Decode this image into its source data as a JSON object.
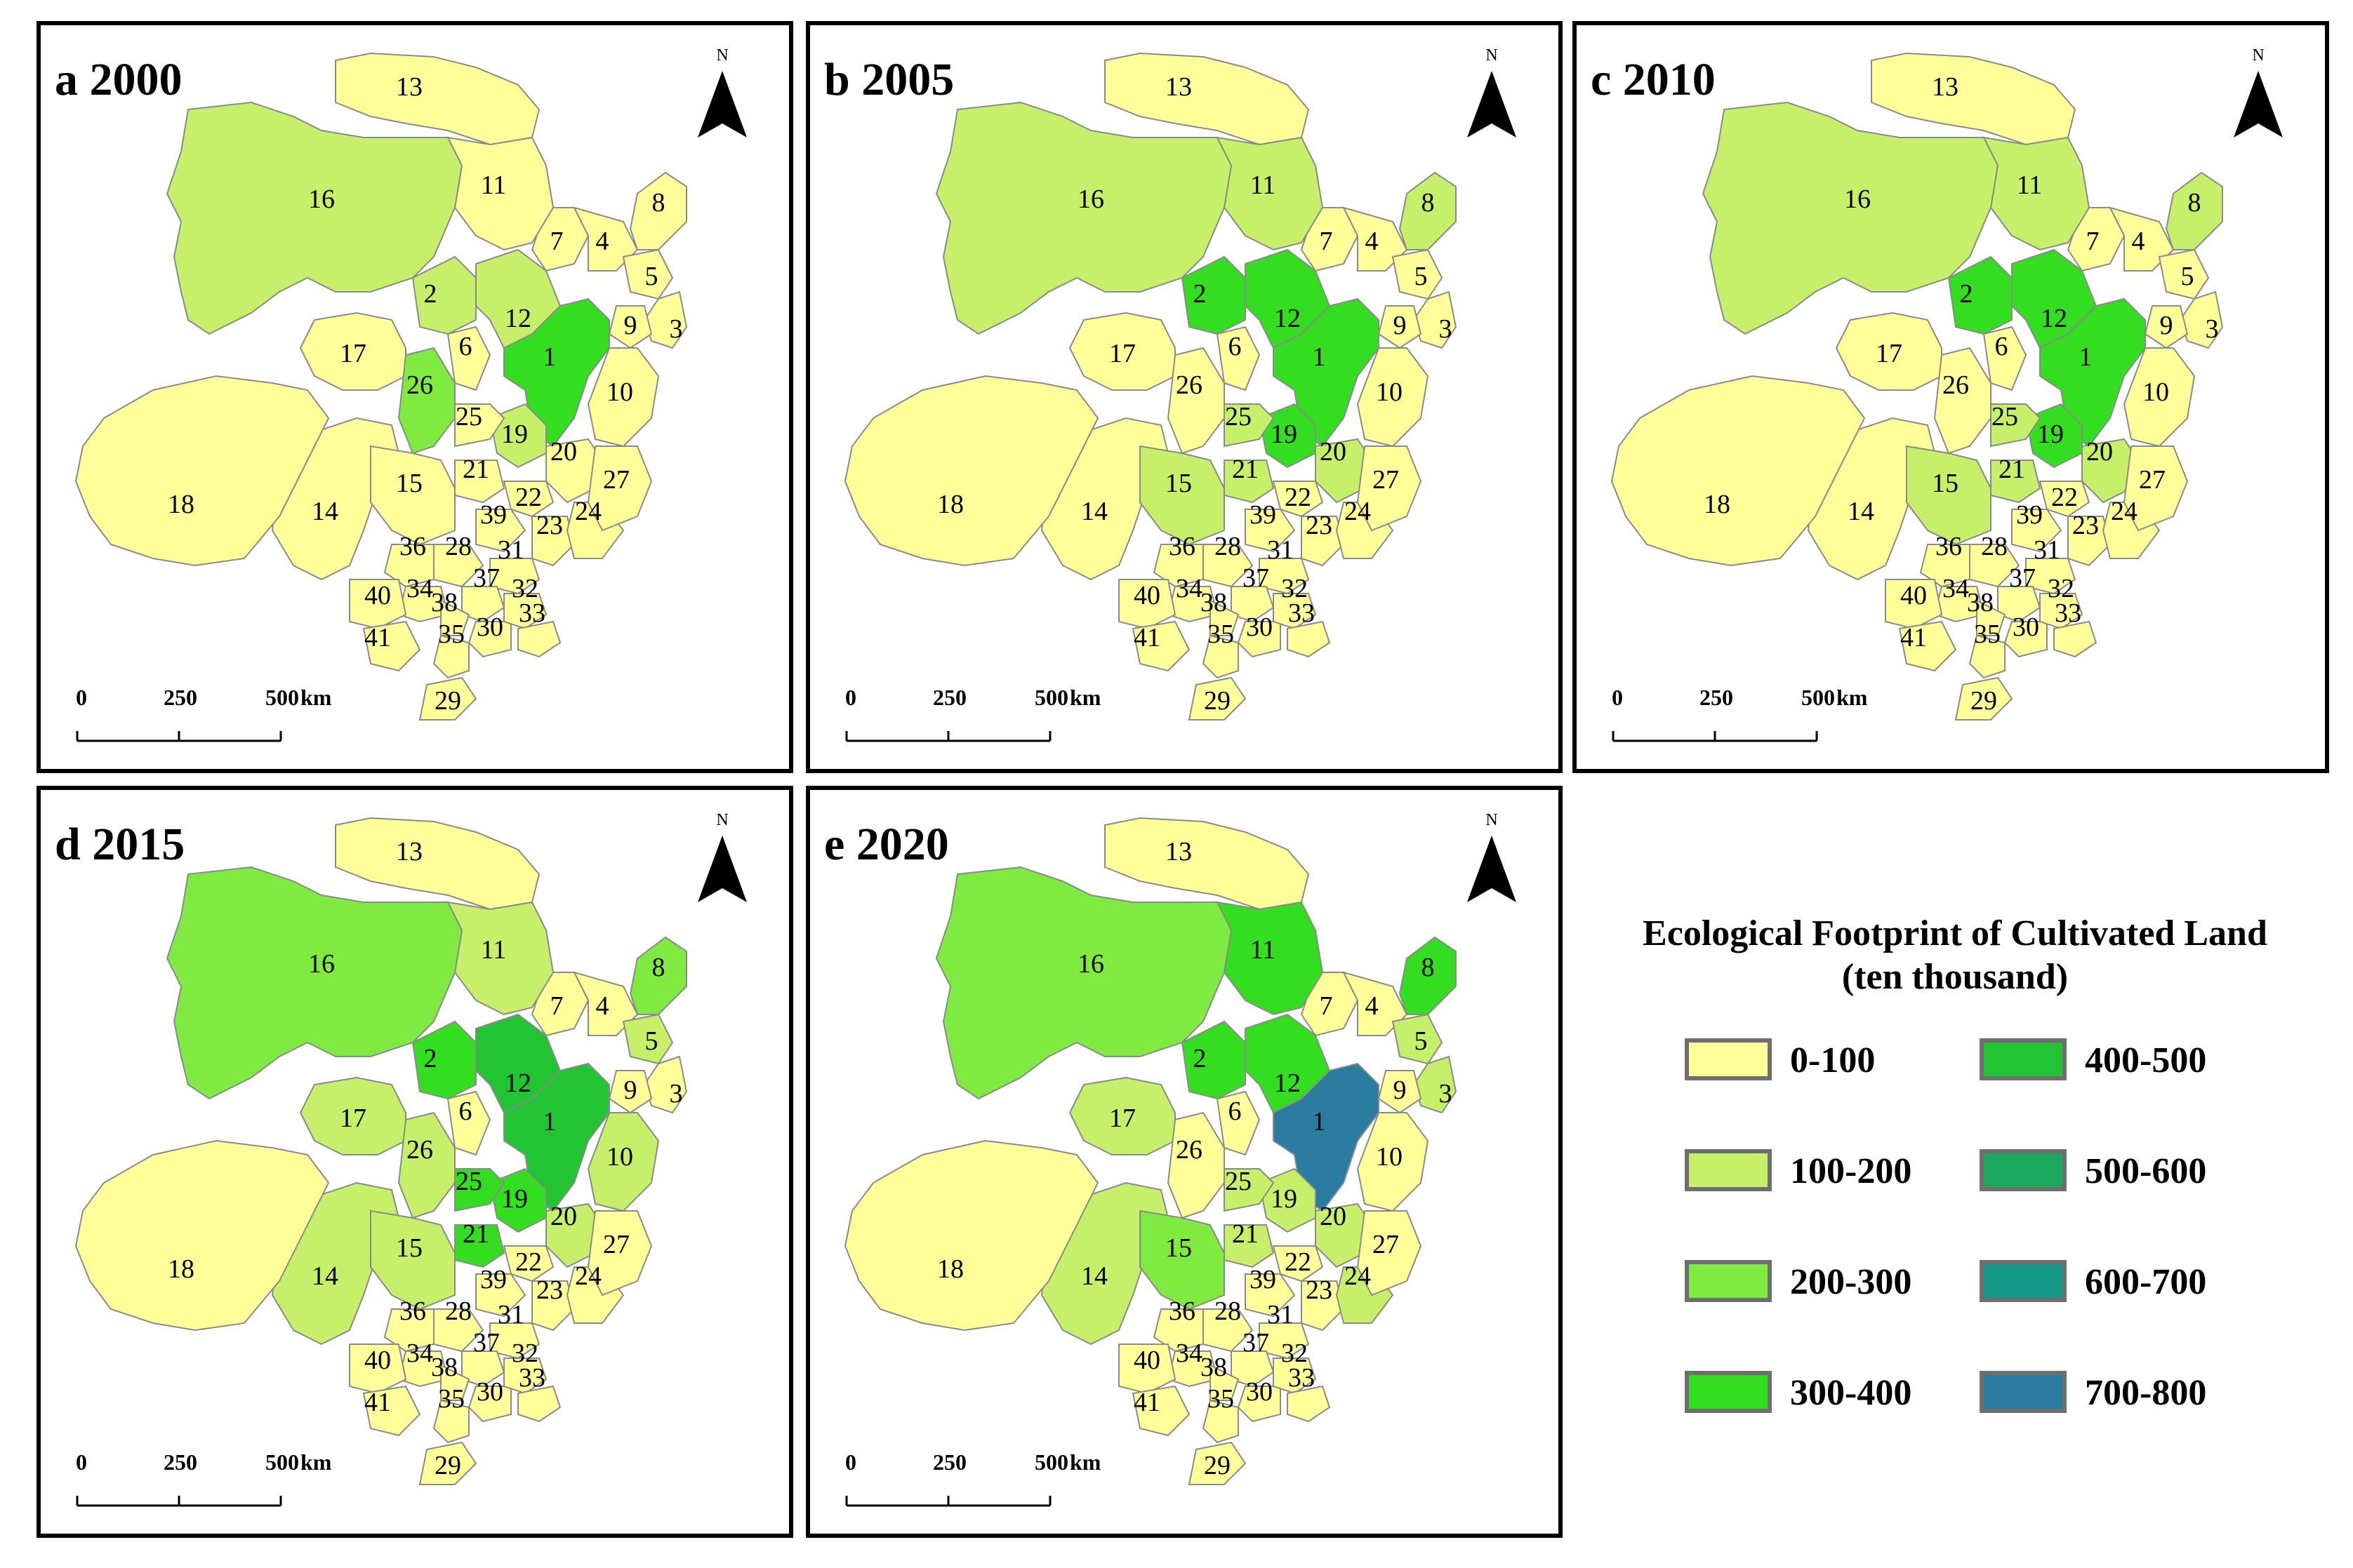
{
  "legend": {
    "title_line1": "Ecological Footprint of Cultivated Land",
    "title_line2": "(ten thousand)",
    "classes": [
      {
        "label": "0-100",
        "color": "#FFFF99"
      },
      {
        "label": "100-200",
        "color": "#C6EF6A"
      },
      {
        "label": "200-300",
        "color": "#7FEA3F"
      },
      {
        "label": "300-400",
        "color": "#33DD1F"
      },
      {
        "label": "400-500",
        "color": "#22C433"
      },
      {
        "label": "500-600",
        "color": "#1AA85E"
      },
      {
        "label": "600-700",
        "color": "#159989"
      },
      {
        "label": "700-800",
        "color": "#2A7DA0"
      }
    ]
  },
  "north_label": "N",
  "scale": {
    "ticks": [
      "0",
      "250",
      "500"
    ],
    "unit": "km"
  },
  "panels": [
    {
      "title": "a 2000",
      "classes": {
        "1": 3,
        "2": 1,
        "8": 0,
        "11": 0,
        "12": 1,
        "15": 0,
        "16": 1,
        "19": 1,
        "20": 0,
        "21": 0,
        "25": 0,
        "26": 2,
        "17": 0,
        "14": 0,
        "10": 0,
        "24": 0,
        "5": 0,
        "3": 0
      }
    },
    {
      "title": "b 2005",
      "classes": {
        "1": 3,
        "2": 3,
        "8": 1,
        "11": 1,
        "12": 3,
        "15": 1,
        "16": 1,
        "19": 3,
        "20": 1,
        "21": 1,
        "25": 1,
        "26": 0,
        "17": 0,
        "14": 0,
        "10": 0,
        "24": 0,
        "5": 0,
        "3": 0
      }
    },
    {
      "title": "c 2010",
      "classes": {
        "1": 3,
        "2": 3,
        "8": 1,
        "11": 1,
        "12": 3,
        "15": 1,
        "16": 1,
        "19": 3,
        "20": 1,
        "21": 1,
        "25": 1,
        "26": 0,
        "17": 0,
        "14": 0,
        "10": 0,
        "24": 0,
        "5": 0,
        "3": 0
      }
    },
    {
      "title": "d 2015",
      "classes": {
        "1": 4,
        "2": 3,
        "8": 2,
        "11": 1,
        "12": 4,
        "15": 1,
        "16": 2,
        "19": 3,
        "20": 1,
        "21": 3,
        "25": 3,
        "26": 1,
        "17": 1,
        "14": 1,
        "10": 1,
        "24": 0,
        "5": 1,
        "3": 0
      }
    },
    {
      "title": "e 2020",
      "classes": {
        "1": 7,
        "2": 3,
        "8": 3,
        "11": 3,
        "12": 3,
        "15": 2,
        "16": 2,
        "19": 1,
        "20": 1,
        "21": 1,
        "25": 1,
        "26": 0,
        "17": 1,
        "14": 1,
        "10": 0,
        "24": 1,
        "5": 1,
        "3": 1
      }
    }
  ],
  "region_labels": [
    "1",
    "2",
    "3",
    "4",
    "5",
    "6",
    "7",
    "8",
    "9",
    "10",
    "11",
    "12",
    "13",
    "14",
    "15",
    "16",
    "17",
    "18",
    "19",
    "20",
    "21",
    "22",
    "23",
    "24",
    "25",
    "26",
    "27",
    "28",
    "29",
    "30",
    "31",
    "32",
    "33",
    "34",
    "35",
    "36",
    "37",
    "38",
    "39",
    "40",
    "41"
  ]
}
